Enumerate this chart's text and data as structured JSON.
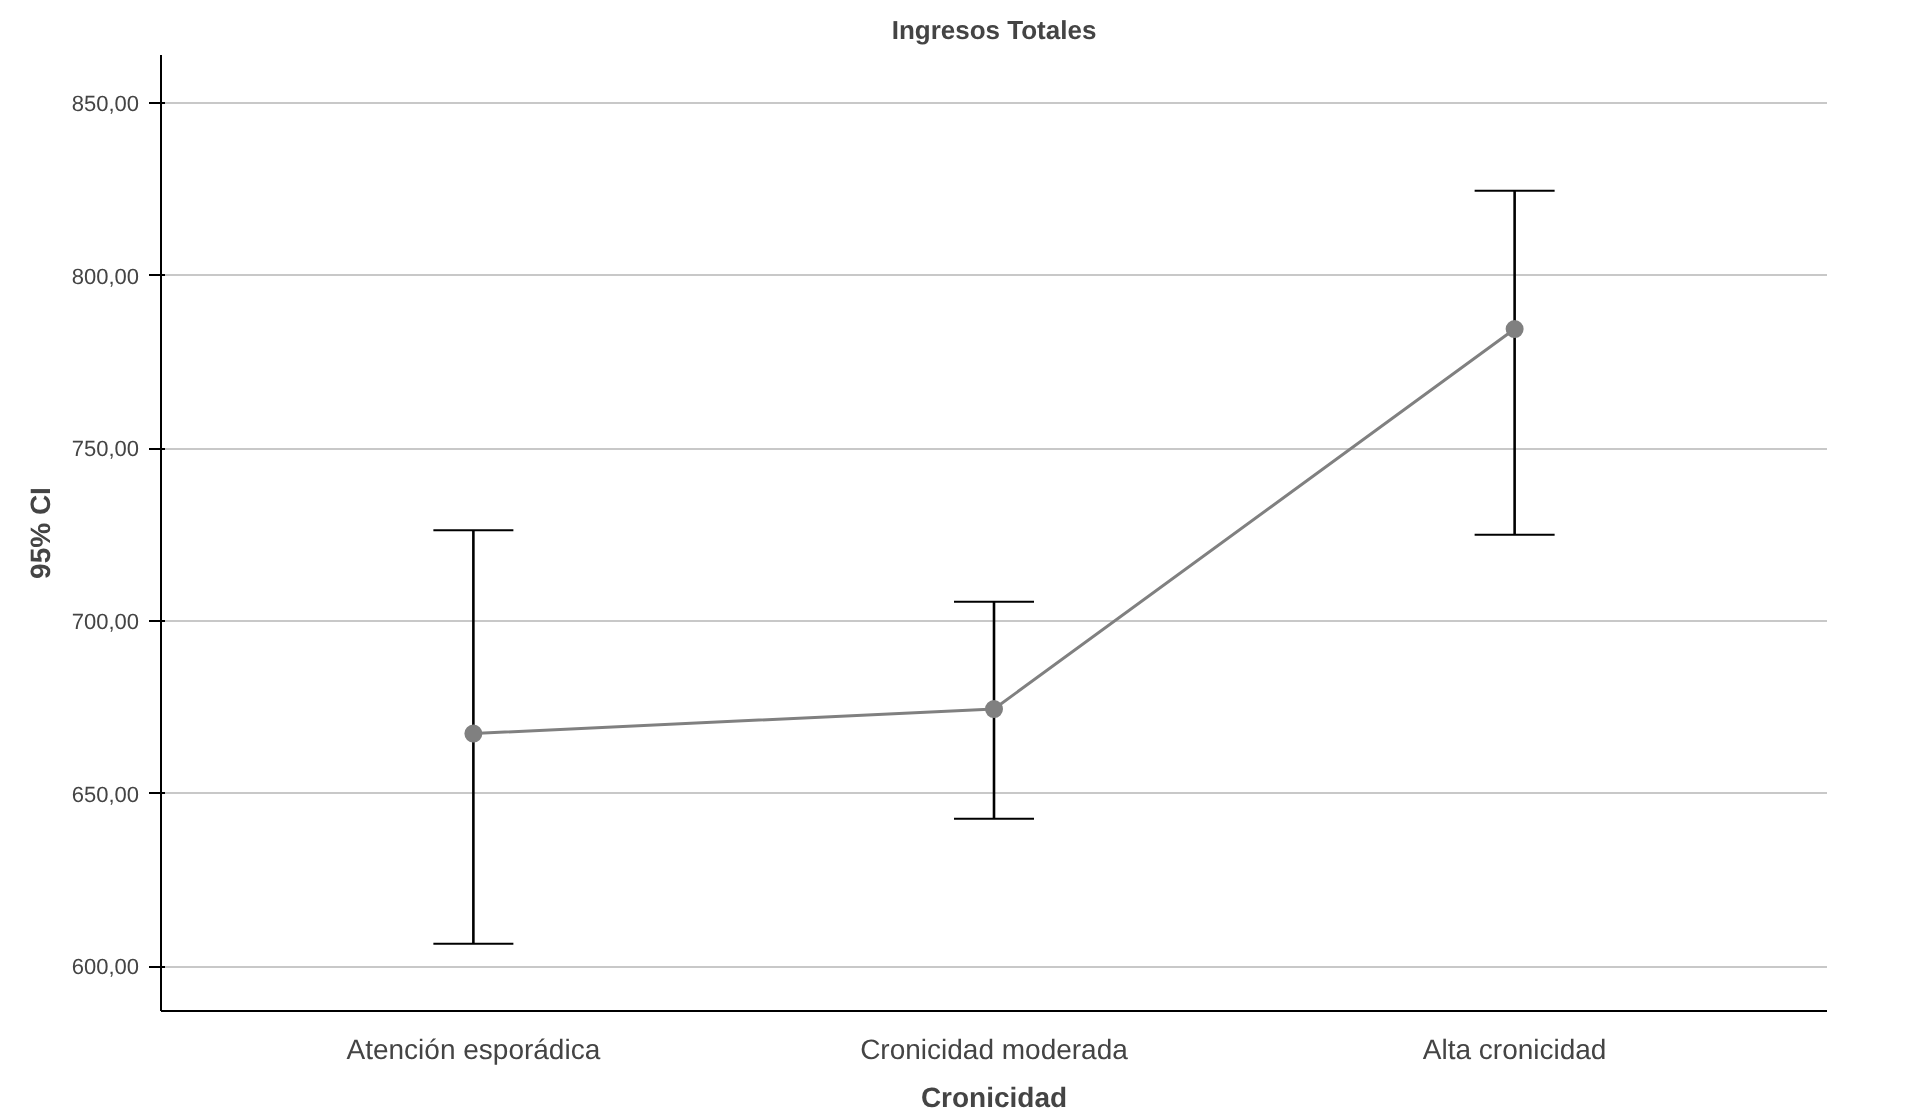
{
  "chart_data": {
    "type": "line",
    "title": "Ingresos Totales",
    "xlabel": "Cronicidad",
    "ylabel": "95% CI",
    "categories": [
      "Atención esporádica",
      "Cronicidad moderada",
      "Alta cronicidad"
    ],
    "series": [
      {
        "color": "#808080",
        "values": [
          667.4,
          674.5,
          784.6
        ],
        "errors": [
          [
            606.5,
            726.3
          ],
          [
            642.7,
            705.6
          ],
          [
            725.0,
            824.7
          ]
        ]
      }
    ],
    "ylim": [
      587,
      864
    ],
    "yticks": [
      {
        "value": 600,
        "label": "600,00"
      },
      {
        "value": 650,
        "label": "650,00"
      },
      {
        "value": 700,
        "label": "700,00"
      },
      {
        "value": 750,
        "label": "750,00"
      },
      {
        "value": 800,
        "label": "800,00"
      },
      {
        "value": 850,
        "label": "850,00"
      }
    ],
    "grid": "y",
    "marker": "circle",
    "line_style": "solid"
  }
}
